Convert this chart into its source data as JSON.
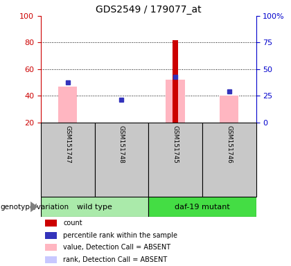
{
  "title": "GDS2549 / 179077_at",
  "samples": [
    "GSM151747",
    "GSM151748",
    "GSM151745",
    "GSM151746"
  ],
  "ylim_left": [
    20,
    100
  ],
  "yticks_left": [
    20,
    40,
    60,
    80,
    100
  ],
  "ytick_labels_right": [
    "0",
    "25",
    "50",
    "75",
    "100%"
  ],
  "right_tick_positions": [
    20,
    40,
    60,
    80,
    100
  ],
  "bar_bottom": 20,
  "pink_bars": {
    "GSM151747": 47,
    "GSM151748": null,
    "GSM151745": 52,
    "GSM151746": 40
  },
  "red_bars": {
    "GSM151747": null,
    "GSM151748": null,
    "GSM151745": 82,
    "GSM151746": null
  },
  "blue_squares": {
    "GSM151747": 50,
    "GSM151748": 37,
    "GSM151745": 54,
    "GSM151746": 43
  },
  "left_axis_color": "#cc0000",
  "right_axis_color": "#0000cc",
  "sample_box_color": "#c8c8c8",
  "wt_color": "#aaeaaa",
  "mut_color": "#44dd44",
  "legend_colors": [
    "#cc0000",
    "#3333bb",
    "#ffb6c1",
    "#c8c8ff"
  ],
  "legend_labels": [
    "count",
    "percentile rank within the sample",
    "value, Detection Call = ABSENT",
    "rank, Detection Call = ABSENT"
  ],
  "pink_bar_width": 0.35,
  "red_bar_width": 0.1
}
